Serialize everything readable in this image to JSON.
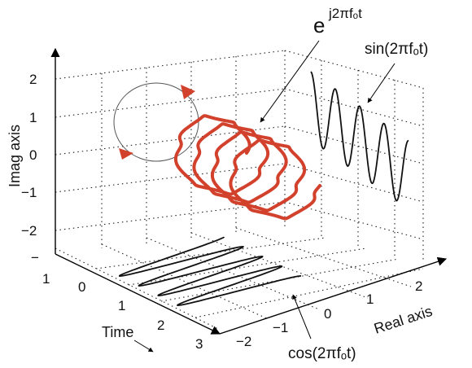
{
  "axes": {
    "imag_label": "Imag axis",
    "real_label": "Real axis",
    "time_label": "Time",
    "imag_ticks": [
      "2",
      "1",
      "0",
      "−1",
      "−2"
    ],
    "real_ticks": [
      "−2",
      "−1",
      "0",
      "1",
      "2"
    ],
    "time_ticks": [
      "−",
      "1",
      "0",
      "1",
      "2",
      "3"
    ]
  },
  "labels": {
    "exp_base": "e",
    "exp_power": "j2πfₒt",
    "sin": "sin(2πfₒt)",
    "cos": "cos(2πfₒt)"
  },
  "colors": {
    "helix": "#d2412c",
    "rotation_arrow": "#d2412c",
    "projection": "#111111"
  }
}
